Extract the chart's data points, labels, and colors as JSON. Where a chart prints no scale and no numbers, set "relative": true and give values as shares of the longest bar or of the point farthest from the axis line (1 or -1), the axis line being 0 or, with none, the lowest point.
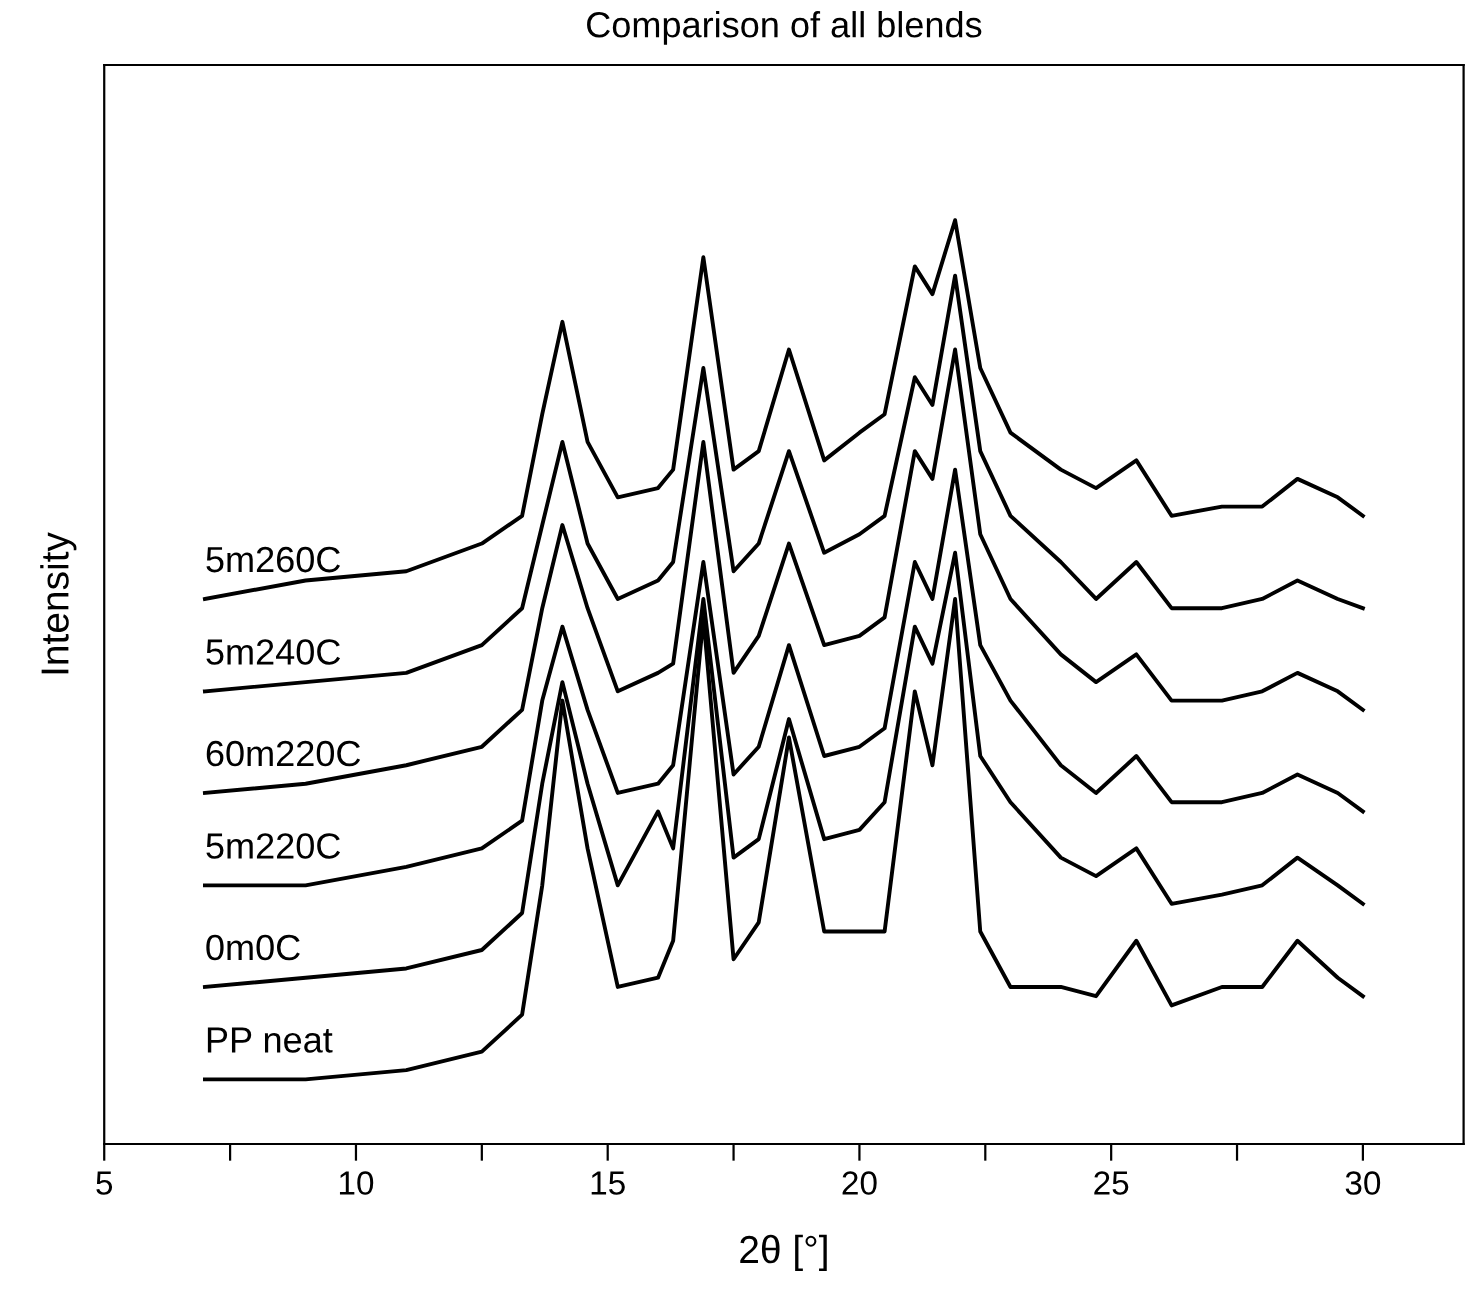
{
  "chart_data": {
    "type": "line",
    "title": "Comparison of all blends",
    "xlabel": "2θ [°]",
    "ylabel": "Intensity",
    "relative": true,
    "line_style": "solid",
    "marker": "none",
    "xlim": [
      5,
      32
    ],
    "xticks": [
      5,
      {
        "value": 7.5,
        "label": null
      },
      10,
      {
        "value": 12.5,
        "label": null
      },
      15,
      {
        "value": 17.5,
        "label": null
      },
      20,
      {
        "value": 22.5,
        "label": null
      },
      25,
      {
        "value": 27.5,
        "label": null
      },
      30
    ],
    "x": [
      7,
      9,
      11,
      12.5,
      13.3,
      13.7,
      14.1,
      14.6,
      15.2,
      16.0,
      16.3,
      16.9,
      17.5,
      18.0,
      18.6,
      19.3,
      20.0,
      20.5,
      21.1,
      21.45,
      21.9,
      22.4,
      23.0,
      24.0,
      24.7,
      25.5,
      26.2,
      27.2,
      28.0,
      28.7,
      29.5,
      30
    ],
    "series": [
      {
        "name": "PP neat",
        "color": "#000000",
        "values": [
          0.07,
          0.07,
          0.08,
          0.1,
          0.14,
          0.28,
          0.48,
          0.32,
          0.17,
          0.18,
          0.22,
          0.57,
          0.2,
          0.24,
          0.44,
          0.23,
          0.23,
          0.23,
          0.49,
          0.41,
          0.59,
          0.23,
          0.17,
          0.17,
          0.16,
          0.22,
          0.15,
          0.17,
          0.17,
          0.22,
          0.18,
          0.16
        ]
      },
      {
        "name": "0m0C",
        "color": "#000000",
        "values": [
          0.17,
          0.18,
          0.19,
          0.21,
          0.25,
          0.39,
          0.5,
          0.39,
          0.28,
          0.36,
          0.32,
          0.59,
          0.31,
          0.33,
          0.46,
          0.33,
          0.34,
          0.37,
          0.56,
          0.52,
          0.64,
          0.42,
          0.37,
          0.31,
          0.29,
          0.32,
          0.26,
          0.27,
          0.28,
          0.31,
          0.28,
          0.26
        ]
      },
      {
        "name": "5m220C",
        "color": "#000000",
        "values": [
          0.28,
          0.28,
          0.3,
          0.32,
          0.35,
          0.48,
          0.56,
          0.47,
          0.38,
          0.39,
          0.41,
          0.63,
          0.4,
          0.43,
          0.54,
          0.42,
          0.43,
          0.45,
          0.63,
          0.59,
          0.73,
          0.54,
          0.48,
          0.41,
          0.38,
          0.42,
          0.37,
          0.37,
          0.38,
          0.4,
          0.38,
          0.36
        ]
      },
      {
        "name": "60m220C",
        "color": "#000000",
        "values": [
          0.38,
          0.39,
          0.41,
          0.43,
          0.47,
          0.58,
          0.67,
          0.58,
          0.49,
          0.51,
          0.52,
          0.76,
          0.51,
          0.55,
          0.65,
          0.54,
          0.55,
          0.57,
          0.75,
          0.72,
          0.86,
          0.66,
          0.59,
          0.53,
          0.5,
          0.53,
          0.48,
          0.48,
          0.49,
          0.51,
          0.49,
          0.47
        ]
      },
      {
        "name": "5m240C",
        "color": "#000000",
        "values": [
          0.49,
          0.5,
          0.51,
          0.54,
          0.58,
          0.67,
          0.76,
          0.65,
          0.59,
          0.61,
          0.63,
          0.84,
          0.62,
          0.65,
          0.75,
          0.64,
          0.66,
          0.68,
          0.83,
          0.8,
          0.94,
          0.75,
          0.68,
          0.63,
          0.59,
          0.63,
          0.58,
          0.58,
          0.59,
          0.61,
          0.59,
          0.58
        ]
      },
      {
        "name": "5m260C",
        "color": "#000000",
        "values": [
          0.59,
          0.61,
          0.62,
          0.65,
          0.68,
          0.79,
          0.89,
          0.76,
          0.7,
          0.71,
          0.73,
          0.96,
          0.73,
          0.75,
          0.86,
          0.74,
          0.77,
          0.79,
          0.95,
          0.92,
          1.0,
          0.84,
          0.77,
          0.73,
          0.71,
          0.74,
          0.68,
          0.69,
          0.69,
          0.72,
          0.7,
          0.68
        ]
      }
    ]
  }
}
